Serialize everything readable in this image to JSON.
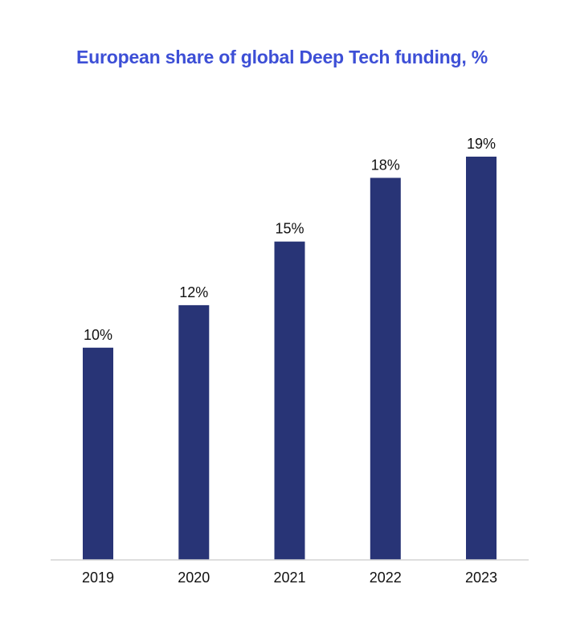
{
  "chart_data": {
    "type": "bar",
    "title": "European share of global Deep Tech funding, %",
    "xlabel": "",
    "ylabel": "",
    "categories": [
      "2019",
      "2020",
      "2021",
      "2022",
      "2023"
    ],
    "values": [
      10,
      12,
      15,
      18,
      19
    ],
    "value_labels": [
      "10%",
      "12%",
      "15%",
      "18%",
      "19%"
    ],
    "ylim": [
      0,
      19
    ],
    "grid": false,
    "colors": {
      "bar": "#283476",
      "title": "#3d4fd6",
      "baseline": "#d3d3d3"
    }
  }
}
